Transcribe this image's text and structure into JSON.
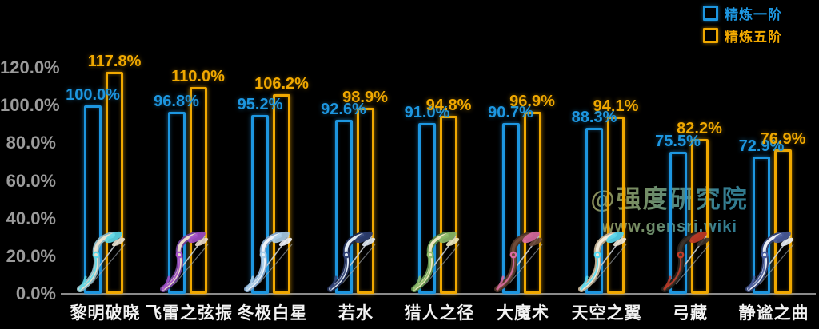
{
  "chart_data": {
    "type": "bar",
    "bar_style": "outline",
    "grid": false,
    "legend_position": "top-right",
    "value_suffix": "%",
    "categories": [
      "黎明破晓",
      "飞雷之弦振",
      "冬极白星",
      "若水",
      "猎人之径",
      "大魔术",
      "天空之翼",
      "弓藏",
      "静谧之曲"
    ],
    "series": [
      {
        "name": "精炼一阶",
        "color": "#1d96e0",
        "values": [
          100.0,
          96.8,
          95.2,
          92.6,
          91.0,
          90.7,
          88.3,
          75.5,
          72.9
        ],
        "value_labels": [
          "100.0%",
          "96.8%",
          "95.2%",
          "92.6%",
          "91.0%",
          "90.7%",
          "88.3%",
          "75.5%",
          "72.9%"
        ]
      },
      {
        "name": "精炼五阶",
        "color": "#f0a800",
        "values": [
          117.8,
          110.0,
          106.2,
          98.9,
          94.8,
          96.9,
          94.1,
          82.2,
          76.9
        ],
        "value_labels": [
          "117.8%",
          "110.0%",
          "106.2%",
          "98.9%",
          "94.8%",
          "96.9%",
          "94.1%",
          "82.2%",
          "76.9%"
        ]
      }
    ],
    "ylim": [
      0,
      120
    ],
    "y_ticks": [
      {
        "value": 120,
        "label": "120.0%"
      },
      {
        "value": 100,
        "label": "100.0%"
      },
      {
        "value": 80,
        "label": "80.0%"
      },
      {
        "value": 60,
        "label": "60.0%"
      },
      {
        "value": 40,
        "label": "40.0%"
      },
      {
        "value": 20,
        "label": "20.0%"
      },
      {
        "value": 0,
        "label": "0.0%"
      }
    ]
  },
  "legend": {
    "items": [
      {
        "label": "精炼一阶",
        "color": "#1d96e0"
      },
      {
        "label": "精炼五阶",
        "color": "#f0a800"
      }
    ]
  },
  "watermark": {
    "line1": "@强度研究院",
    "line2": "www.gensri.wiki"
  },
  "weapon_icons": [
    {
      "name": "黎明破晓-weapon-icon",
      "body": "#e9e1cf",
      "accent": "#5cd9e8",
      "dark": "#8ab6c2"
    },
    {
      "name": "飞雷之弦振-weapon-icon",
      "body": "#ead9c8",
      "accent": "#a24fc8",
      "dark": "#6d3f96"
    },
    {
      "name": "冬极白星-weapon-icon",
      "body": "#eef2f8",
      "accent": "#a9cde8",
      "dark": "#7fa3c8"
    },
    {
      "name": "若水-weapon-icon",
      "body": "#dfe8f2",
      "accent": "#2e3f72",
      "dark": "#1f2c52"
    },
    {
      "name": "猎人之径-weapon-icon",
      "body": "#ece7bd",
      "accent": "#8cba69",
      "dark": "#5d8a4a"
    },
    {
      "name": "大魔术-weapon-icon",
      "body": "#6e4a38",
      "accent": "#d96ba2",
      "dark": "#4a3226"
    },
    {
      "name": "天空之翼-weapon-icon",
      "body": "#f1e9d8",
      "accent": "#55d8f0",
      "dark": "#b9a98e"
    },
    {
      "name": "弓藏-weapon-icon",
      "body": "#3b3129",
      "accent": "#c23b28",
      "dark": "#27201a"
    },
    {
      "name": "静谧之曲-weapon-icon",
      "body": "#e9edf5",
      "accent": "#4a5c9c",
      "dark": "#32406e"
    }
  ]
}
